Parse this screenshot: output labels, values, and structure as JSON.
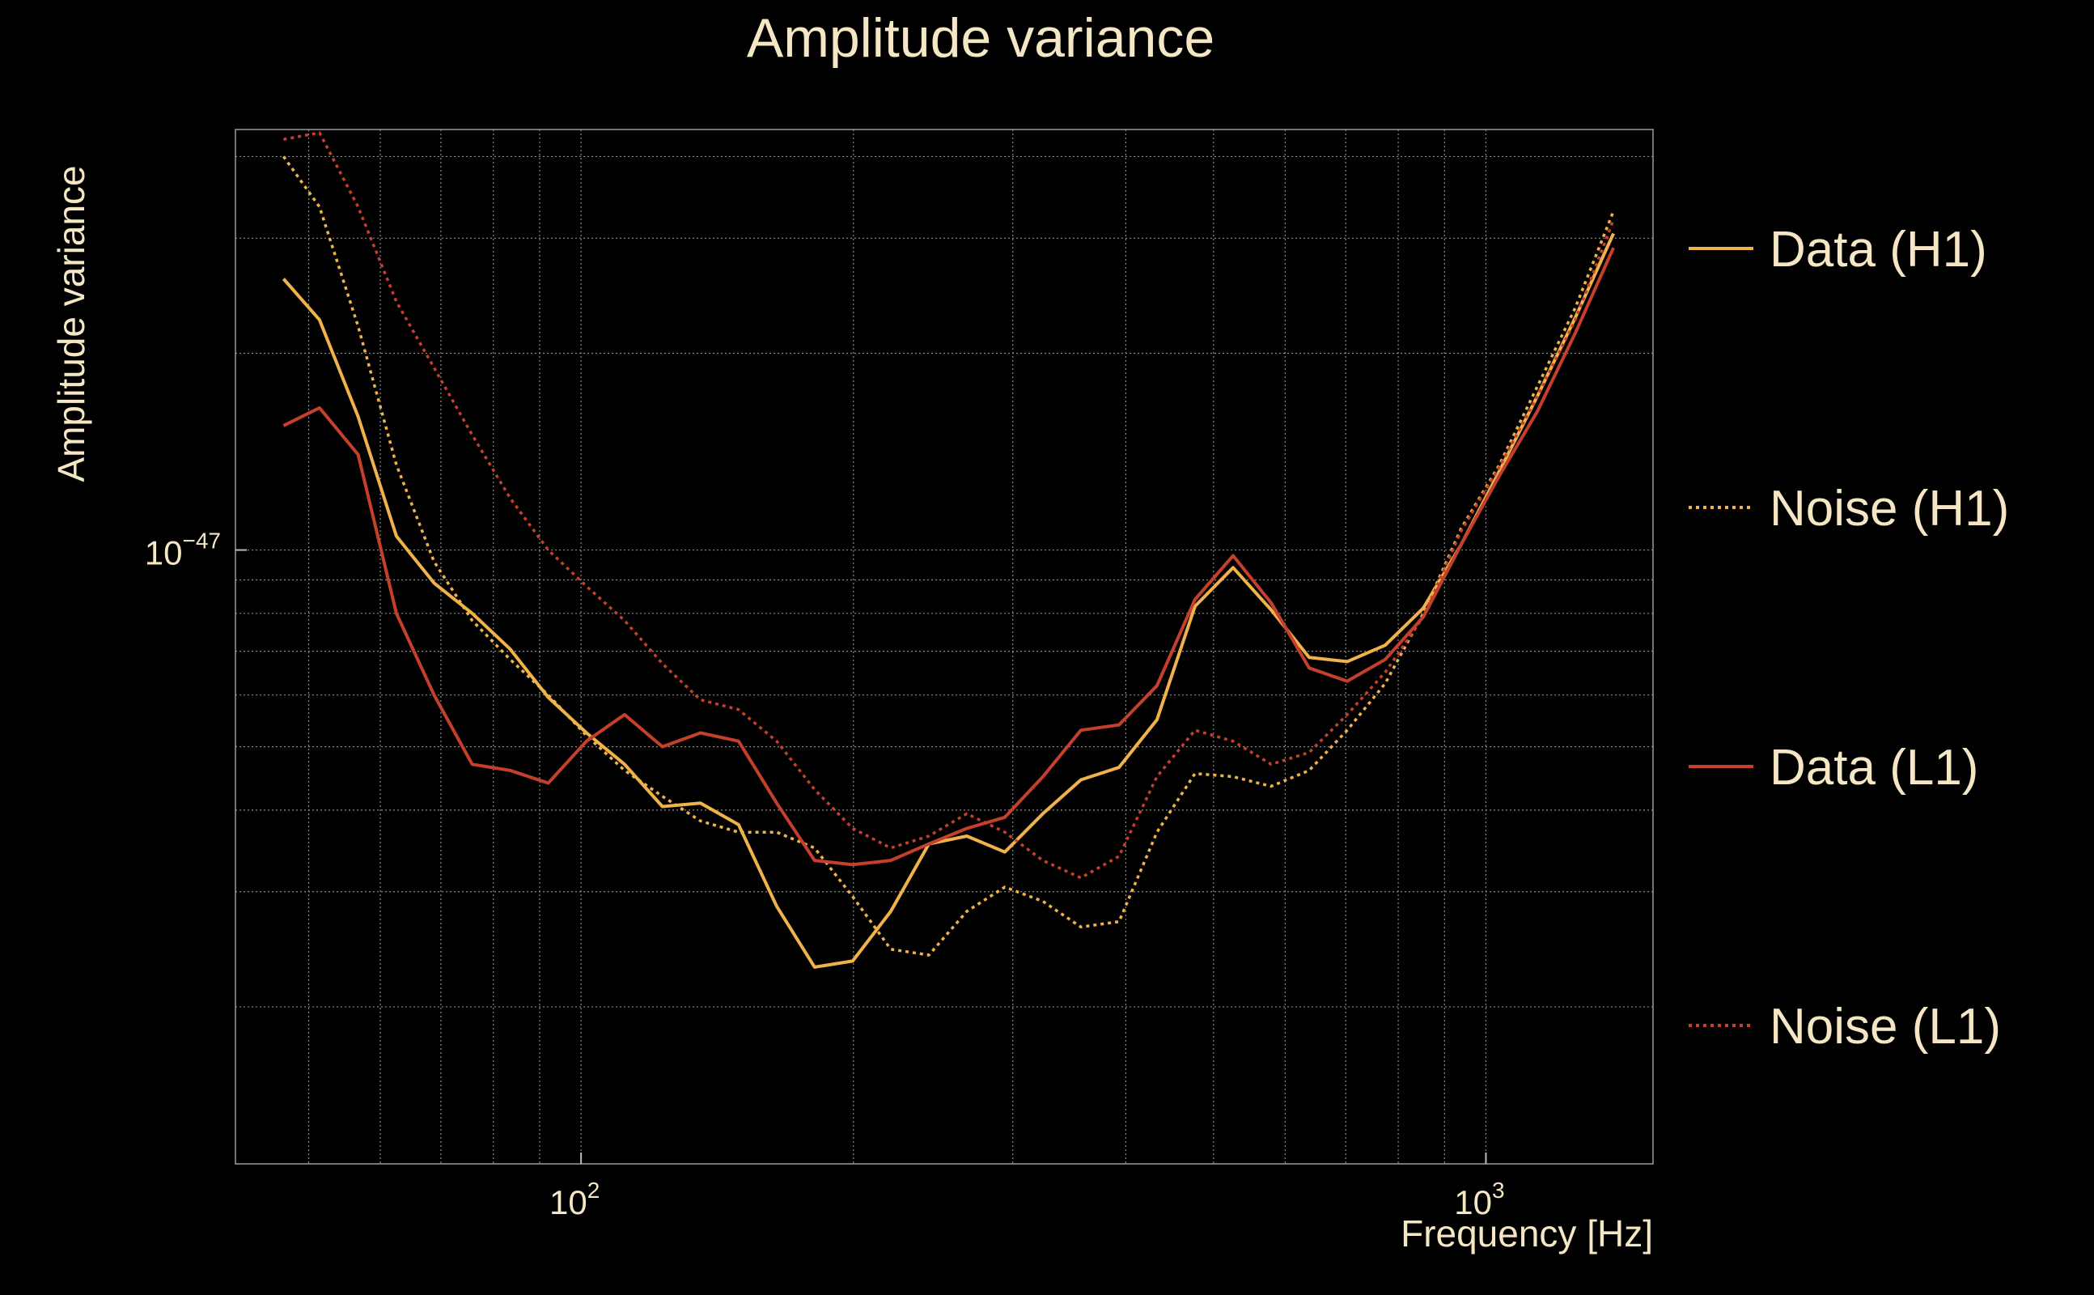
{
  "chart_data": {
    "type": "line",
    "title": "Amplitude variance",
    "xlabel": "Frequency [Hz]",
    "ylabel": "Amplitude variance",
    "xscale": "log",
    "yscale": "log",
    "xlim": [
      41.5,
      1530
    ],
    "ylim": [
      1.15e-48,
      4.4e-47
    ],
    "x_tick_labels": [
      {
        "value": 100,
        "base": "10",
        "exp": "2"
      },
      {
        "value": 1000,
        "base": "10",
        "exp": "3"
      }
    ],
    "y_tick_labels": [
      {
        "value": 1e-47,
        "base": "10",
        "exp": "−47"
      }
    ],
    "grid": true,
    "legend_position": "right",
    "x": [
      46.9,
      51.4,
      56.7,
      62.5,
      68.8,
      75.8,
      83.5,
      92,
      101.4,
      111.7,
      123,
      135.5,
      149.3,
      164.5,
      181.2,
      199.6,
      219.9,
      242.3,
      266.9,
      294,
      323.9,
      356.8,
      393.1,
      433,
      477,
      525.5,
      578.9,
      637.8,
      702.6,
      774,
      852.7,
      939.3,
      1034.8,
      1140,
      1255.9,
      1383.5
    ],
    "series": [
      {
        "name": "Data (H1)",
        "color": "#f0b24a",
        "style": "solid",
        "values": [
          2.6e-47,
          2.25e-47,
          1.6e-47,
          1.05e-47,
          8.9e-48,
          8e-48,
          7.05e-48,
          5.95e-48,
          5.25e-48,
          4.7e-48,
          4.05e-48,
          4.1e-48,
          3.8e-48,
          2.85e-48,
          2.3e-48,
          2.35e-48,
          2.8e-48,
          3.55e-48,
          3.65e-48,
          3.45e-48,
          3.95e-48,
          4.45e-48,
          4.65e-48,
          5.5e-48,
          8.2e-48,
          9.4e-48,
          8.1e-48,
          6.85e-48,
          6.75e-48,
          7.15e-48,
          8.15e-48,
          1.02e-47,
          1.32e-47,
          1.72e-47,
          2.27e-47,
          3.05e-47
        ]
      },
      {
        "name": "Noise (H1)",
        "color": "#f0b24a",
        "style": "dotted",
        "values": [
          4e-47,
          3.35e-47,
          2.2e-47,
          1.35e-47,
          9.6e-48,
          7.8e-48,
          6.8e-48,
          6e-48,
          5.2e-48,
          4.6e-48,
          4.2e-48,
          3.85e-48,
          3.7e-48,
          3.7e-48,
          3.5e-48,
          2.95e-48,
          2.45e-48,
          2.4e-48,
          2.8e-48,
          3.05e-48,
          2.9e-48,
          2.65e-48,
          2.7e-48,
          3.7e-48,
          4.55e-48,
          4.5e-48,
          4.35e-48,
          4.6e-48,
          5.3e-48,
          6.25e-48,
          8e-48,
          1.08e-47,
          1.35e-47,
          1.78e-47,
          2.35e-47,
          3.3e-47
        ]
      },
      {
        "name": "Data (L1)",
        "color": "#c4402c",
        "style": "solid",
        "values": [
          1.55e-47,
          1.65e-47,
          1.4e-47,
          8e-48,
          6e-48,
          4.7e-48,
          4.6e-48,
          4.4e-48,
          5.1e-48,
          5.6e-48,
          5e-48,
          5.25e-48,
          5.1e-48,
          4.1e-48,
          3.35e-48,
          3.3e-48,
          3.35e-48,
          3.55e-48,
          3.75e-48,
          3.9e-48,
          4.5e-48,
          5.3e-48,
          5.4e-48,
          6.2e-48,
          8.4e-48,
          9.8e-48,
          8.3e-48,
          6.6e-48,
          6.3e-48,
          6.8e-48,
          7.9e-48,
          1.02e-47,
          1.3e-47,
          1.63e-47,
          2.15e-47,
          2.9e-47
        ]
      },
      {
        "name": "Noise (L1)",
        "color": "#c4402c",
        "style": "dotted",
        "values": [
          4.25e-47,
          4.35e-47,
          3.35e-47,
          2.4e-47,
          1.9e-47,
          1.5e-47,
          1.2e-47,
          1e-47,
          8.8e-48,
          7.8e-48,
          6.7e-48,
          5.9e-48,
          5.7e-48,
          5.1e-48,
          4.3e-48,
          3.75e-48,
          3.5e-48,
          3.65e-48,
          3.95e-48,
          3.7e-48,
          3.35e-48,
          3.15e-48,
          3.4e-48,
          4.5e-48,
          5.3e-48,
          5.1e-48,
          4.7e-48,
          4.9e-48,
          5.6e-48,
          6.5e-48,
          7.9e-48,
          1.07e-47,
          1.34e-47,
          1.72e-47,
          2.25e-47,
          3.2e-47
        ]
      }
    ]
  }
}
